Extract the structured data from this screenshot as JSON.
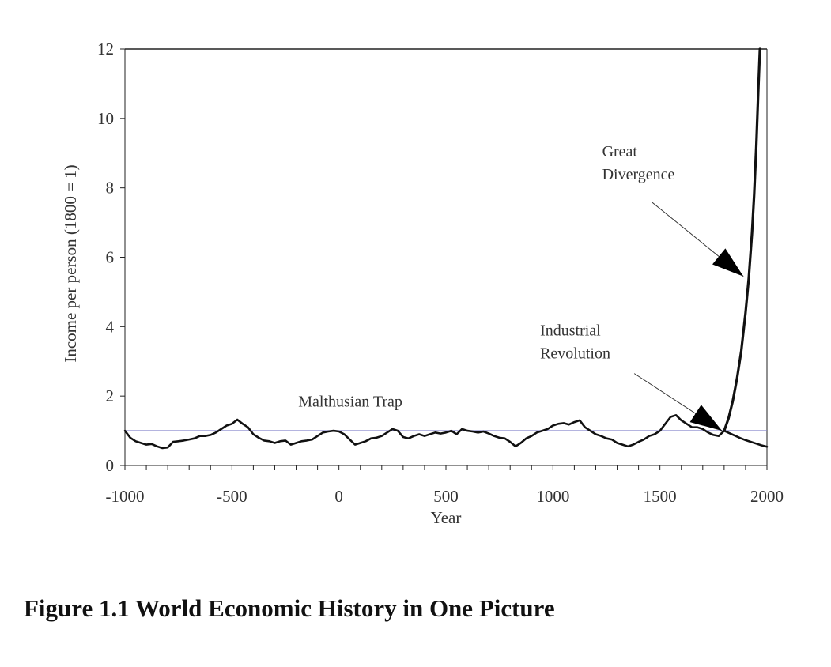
{
  "caption": "Figure 1.1  World Economic History in One Picture",
  "chart_data": {
    "type": "line",
    "title": "",
    "xlabel": "Year",
    "ylabel": "Income per person (1800 = 1)",
    "xlim": [
      -1000,
      2000
    ],
    "ylim": [
      0,
      12
    ],
    "xticks": [
      -1000,
      -500,
      0,
      500,
      1000,
      1500,
      2000
    ],
    "yticks": [
      0,
      2,
      4,
      6,
      8,
      10,
      12
    ],
    "grid": false,
    "reference_line": {
      "y": 1,
      "color": "#8888cc"
    },
    "series": [
      {
        "name": "",
        "color": "#111111",
        "x": [
          -1000,
          -975,
          -950,
          -925,
          -900,
          -875,
          -850,
          -825,
          -800,
          -775,
          -750,
          -725,
          -700,
          -675,
          -650,
          -625,
          -600,
          -575,
          -550,
          -525,
          -500,
          -475,
          -450,
          -425,
          -400,
          -375,
          -350,
          -325,
          -300,
          -275,
          -250,
          -225,
          -200,
          -175,
          -150,
          -125,
          -100,
          -75,
          -50,
          -25,
          0,
          25,
          50,
          75,
          100,
          125,
          150,
          175,
          200,
          225,
          250,
          275,
          300,
          325,
          350,
          375,
          400,
          425,
          450,
          475,
          500,
          525,
          550,
          575,
          600,
          625,
          650,
          675,
          700,
          725,
          750,
          775,
          800,
          825,
          850,
          875,
          900,
          925,
          950,
          975,
          1000,
          1025,
          1050,
          1075,
          1100,
          1125,
          1150,
          1175,
          1200,
          1225,
          1250,
          1275,
          1300,
          1325,
          1350,
          1375,
          1400,
          1425,
          1450,
          1475,
          1500,
          1525,
          1550,
          1575,
          1600,
          1625,
          1650,
          1675,
          1700,
          1725,
          1750,
          1775,
          1800
        ],
        "y": [
          1.0,
          0.8,
          0.7,
          0.65,
          0.6,
          0.62,
          0.55,
          0.5,
          0.52,
          0.68,
          0.7,
          0.72,
          0.75,
          0.78,
          0.85,
          0.85,
          0.88,
          0.95,
          1.05,
          1.15,
          1.2,
          1.32,
          1.2,
          1.1,
          0.9,
          0.8,
          0.72,
          0.7,
          0.65,
          0.7,
          0.72,
          0.6,
          0.65,
          0.7,
          0.72,
          0.75,
          0.85,
          0.95,
          0.98,
          1.0,
          0.98,
          0.9,
          0.75,
          0.6,
          0.65,
          0.7,
          0.78,
          0.8,
          0.85,
          0.95,
          1.05,
          1.0,
          0.82,
          0.78,
          0.85,
          0.9,
          0.85,
          0.9,
          0.95,
          0.92,
          0.95,
          1.0,
          0.9,
          1.05,
          1.0,
          0.98,
          0.95,
          0.98,
          0.92,
          0.85,
          0.8,
          0.78,
          0.68,
          0.55,
          0.65,
          0.78,
          0.85,
          0.95,
          1.0,
          1.05,
          1.15,
          1.2,
          1.22,
          1.18,
          1.25,
          1.3,
          1.1,
          1.0,
          0.9,
          0.85,
          0.78,
          0.75,
          0.65,
          0.6,
          0.55,
          0.6,
          0.68,
          0.75,
          0.85,
          0.9,
          1.0,
          1.2,
          1.4,
          1.45,
          1.3,
          1.2,
          1.1,
          1.1,
          1.05,
          0.95,
          0.88,
          0.85,
          1.0
        ]
      },
      {
        "name": "",
        "color": "#111111",
        "x": [
          1800,
          1825,
          1850,
          1875,
          1900,
          1925,
          1950,
          1975,
          2000
        ],
        "y": [
          1.0,
          0.93,
          0.86,
          0.79,
          0.73,
          0.68,
          0.63,
          0.58,
          0.54
        ]
      },
      {
        "name": "",
        "color": "#111111",
        "x": [
          1800,
          1820,
          1840,
          1860,
          1880,
          1900,
          1915,
          1930,
          1940,
          1950,
          1960,
          1967
        ],
        "y": [
          1.0,
          1.35,
          1.85,
          2.5,
          3.3,
          4.4,
          5.4,
          6.7,
          7.8,
          9.2,
          10.9,
          12.0
        ]
      }
    ],
    "annotations": [
      {
        "lines": [
          "Great",
          "Divergence"
        ],
        "x": 1230,
        "y": 8.9,
        "arrow_from": [
          1460,
          7.6
        ],
        "arrow_to": [
          1890,
          5.45
        ]
      },
      {
        "lines": [
          "Industrial",
          "Revolution"
        ],
        "x": 940,
        "y": 3.75,
        "arrow_from": [
          1380,
          2.65
        ],
        "arrow_to": [
          1790,
          1.0
        ]
      },
      {
        "lines": [
          "Malthusian Trap"
        ],
        "x": -190,
        "y": 1.7
      }
    ]
  }
}
